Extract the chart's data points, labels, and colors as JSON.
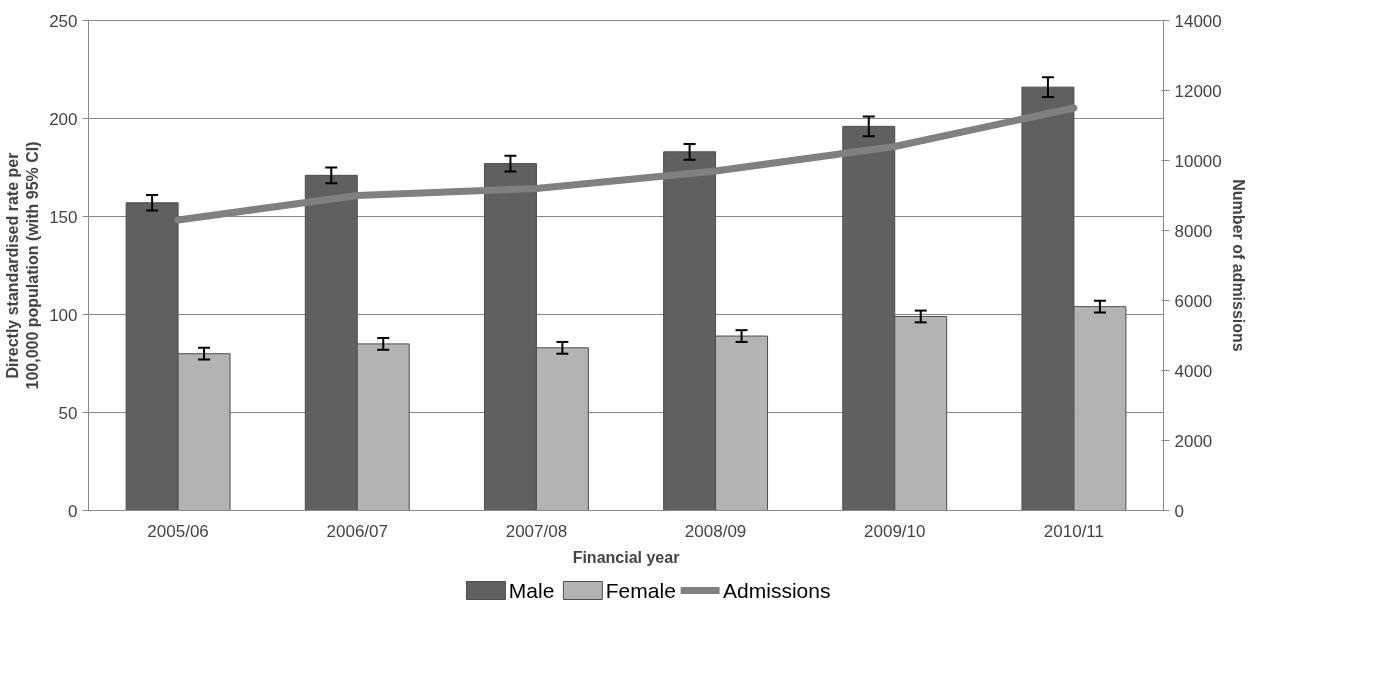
{
  "chart_data": {
    "type": "bar",
    "categories": [
      "2005/06",
      "2006/07",
      "2007/08",
      "2008/09",
      "2009/10",
      "2010/11"
    ],
    "xlabel": "Financial year",
    "ylabel": "Directly standardised rate per 100,000 population (with 95% CI)",
    "y2label": "Number of admissions",
    "ylim": [
      0,
      250
    ],
    "yticks": [
      0,
      50,
      100,
      150,
      200,
      250
    ],
    "y2lim": [
      0,
      14000
    ],
    "y2ticks": [
      0,
      2000,
      4000,
      6000,
      8000,
      10000,
      12000,
      14000
    ],
    "grid": "y",
    "legend": "bottom",
    "series": [
      {
        "name": "Male",
        "color": "#606060",
        "values": [
          157,
          171,
          177,
          183,
          196,
          216
        ],
        "errors": [
          4,
          4,
          4,
          4,
          5,
          5
        ]
      },
      {
        "name": "Female",
        "color": "#b3b3b3",
        "values": [
          80,
          85,
          83,
          89,
          99,
          104
        ],
        "errors": [
          3,
          3,
          3,
          3,
          3,
          3
        ]
      },
      {
        "name": "Admissions",
        "type": "line",
        "axis": "y2",
        "color": "#808080",
        "values": [
          8300,
          9000,
          9200,
          9700,
          10400,
          11500
        ]
      }
    ]
  }
}
